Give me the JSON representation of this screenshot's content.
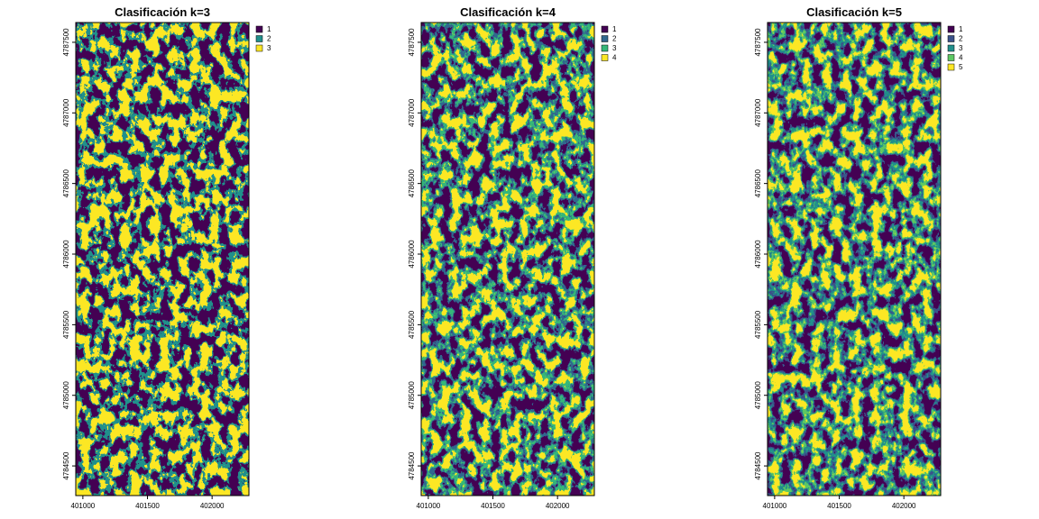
{
  "maps": [
    {
      "title": "Clasificación k=3",
      "xlim": [
        400945,
        402285
      ],
      "ylim": [
        4784290,
        4787640
      ],
      "xticks": [
        401000,
        401500,
        402000
      ],
      "yticks": [
        4784500,
        4785000,
        4785500,
        4786000,
        4786500,
        4787000,
        4787500
      ],
      "classes": [
        {
          "name": "1",
          "color": "#440154"
        },
        {
          "name": "2",
          "color": "#21908C"
        },
        {
          "name": "3",
          "color": "#FDE725"
        }
      ]
    },
    {
      "title": "Clasificación k=4",
      "xlim": [
        400945,
        402285
      ],
      "ylim": [
        4784290,
        4787640
      ],
      "xticks": [
        401000,
        401500,
        402000
      ],
      "yticks": [
        4784500,
        4785000,
        4785500,
        4786000,
        4786500,
        4787000,
        4787500
      ],
      "classes": [
        {
          "name": "1",
          "color": "#440154"
        },
        {
          "name": "2",
          "color": "#31688E"
        },
        {
          "name": "3",
          "color": "#35B779"
        },
        {
          "name": "4",
          "color": "#FDE725"
        }
      ]
    },
    {
      "title": "Clasificación k=5",
      "xlim": [
        400945,
        402285
      ],
      "ylim": [
        4784290,
        4787640
      ],
      "xticks": [
        401000,
        401500,
        402000
      ],
      "yticks": [
        4784500,
        4785000,
        4785500,
        4786000,
        4786500,
        4787000,
        4787500
      ],
      "classes": [
        {
          "name": "1",
          "color": "#440154"
        },
        {
          "name": "2",
          "color": "#3B528B"
        },
        {
          "name": "3",
          "color": "#21908C"
        },
        {
          "name": "4",
          "color": "#5DC863"
        },
        {
          "name": "5",
          "color": "#FDE725"
        }
      ]
    }
  ]
}
